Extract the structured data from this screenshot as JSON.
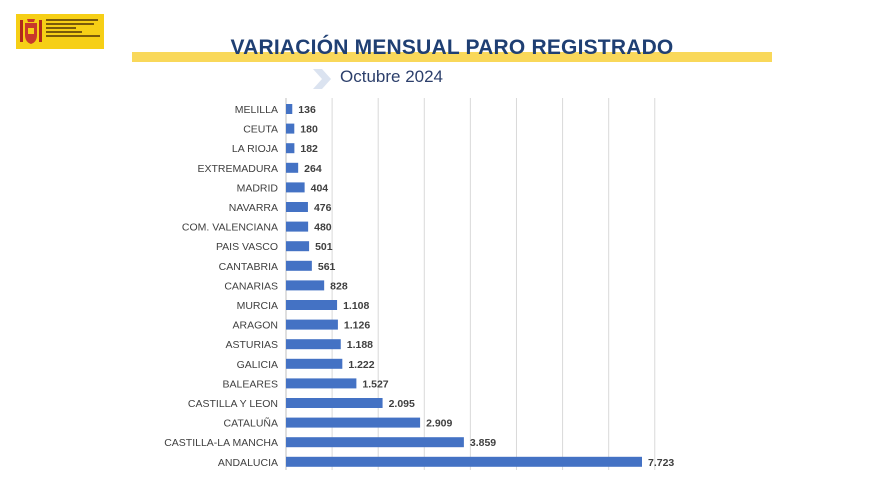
{
  "header": {
    "title": "VARIACIÓN MENSUAL PARO REGISTRADO",
    "subtitle": "Octubre 2024"
  },
  "colors": {
    "bar": "#4472c4",
    "title": "#1f3f73",
    "accent_yellow": "#f9d85a",
    "gridline": "#d9d9d9"
  },
  "icons": {
    "logo": "spanish-government-logo",
    "chevron": "chevron-right-icon"
  },
  "chart_data": {
    "type": "bar",
    "orientation": "horizontal",
    "categories": [
      "MELILLA",
      "CEUTA",
      "LA RIOJA",
      "EXTREMADURA",
      "MADRID",
      "NAVARRA",
      "COM. VALENCIANA",
      "PAIS VASCO",
      "CANTABRIA",
      "CANARIAS",
      "MURCIA",
      "ARAGON",
      "ASTURIAS",
      "GALICIA",
      "BALEARES",
      "CASTILLA Y LEON",
      "CATALUÑA",
      "CASTILLA-LA MANCHA",
      "ANDALUCIA"
    ],
    "values": [
      136,
      180,
      182,
      264,
      404,
      476,
      480,
      501,
      561,
      828,
      1108,
      1126,
      1188,
      1222,
      1527,
      2095,
      2909,
      3859,
      7723
    ],
    "value_labels": [
      "136",
      "180",
      "182",
      "264",
      "404",
      "476",
      "480",
      "501",
      "561",
      "828",
      "1.108",
      "1.126",
      "1.188",
      "1.222",
      "1.527",
      "2.095",
      "2.909",
      "3.859",
      "7.723"
    ],
    "xlim": [
      0,
      8000
    ],
    "grid": true,
    "legend": "none"
  }
}
